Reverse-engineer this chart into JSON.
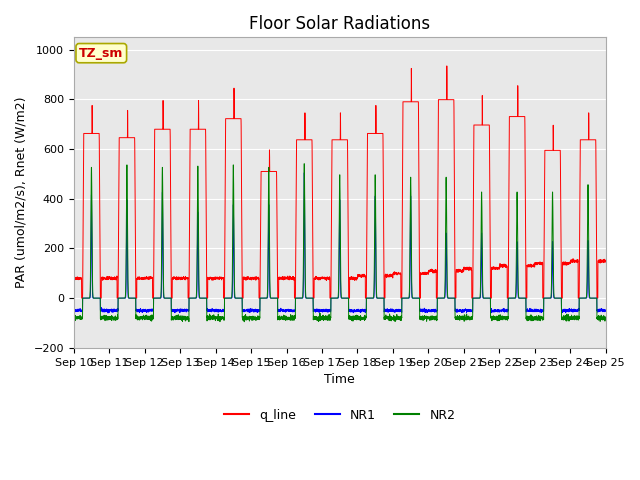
{
  "title": "Floor Solar Radiations",
  "xlabel": "Time",
  "ylabel": "PAR (umol/m2/s), Rnet (W/m2)",
  "ylim": [
    -200,
    1050
  ],
  "ytick_labels": [
    -200,
    0,
    200,
    400,
    600,
    800,
    1000
  ],
  "xtick_labels": [
    "Sep 10",
    "Sep 11",
    "Sep 12",
    "Sep 13",
    "Sep 14",
    "Sep 15",
    "Sep 16",
    "Sep 17",
    "Sep 18",
    "Sep 19",
    "Sep 20",
    "Sep 21",
    "Sep 22",
    "Sep 23",
    "Sep 24",
    "Sep 25"
  ],
  "legend_labels": [
    "q_line",
    "NR1",
    "NR2"
  ],
  "line_colors": [
    "red",
    "blue",
    "green"
  ],
  "annotation_text": "TZ_sm",
  "annotation_bg": "#ffffcc",
  "annotation_border": "#aaa800",
  "annotation_text_color": "#cc0000",
  "plot_bg": "#e8e8e8",
  "title_fontsize": 12,
  "label_fontsize": 9,
  "tick_fontsize": 8,
  "q_peaks": [
    780,
    760,
    800,
    800,
    850,
    600,
    750,
    750,
    780,
    930,
    940,
    820,
    860,
    700,
    750
  ],
  "nr1_peaks": [
    420,
    400,
    430,
    350,
    380,
    380,
    510,
    400,
    415,
    415,
    265,
    265,
    230,
    230,
    235
  ],
  "nr2_peaks": [
    530,
    540,
    530,
    535,
    540,
    530,
    545,
    500,
    500,
    490,
    490,
    430,
    430,
    430,
    460
  ],
  "q_night_base_early": 80,
  "q_night_base_late": 160,
  "transition_day": 7
}
